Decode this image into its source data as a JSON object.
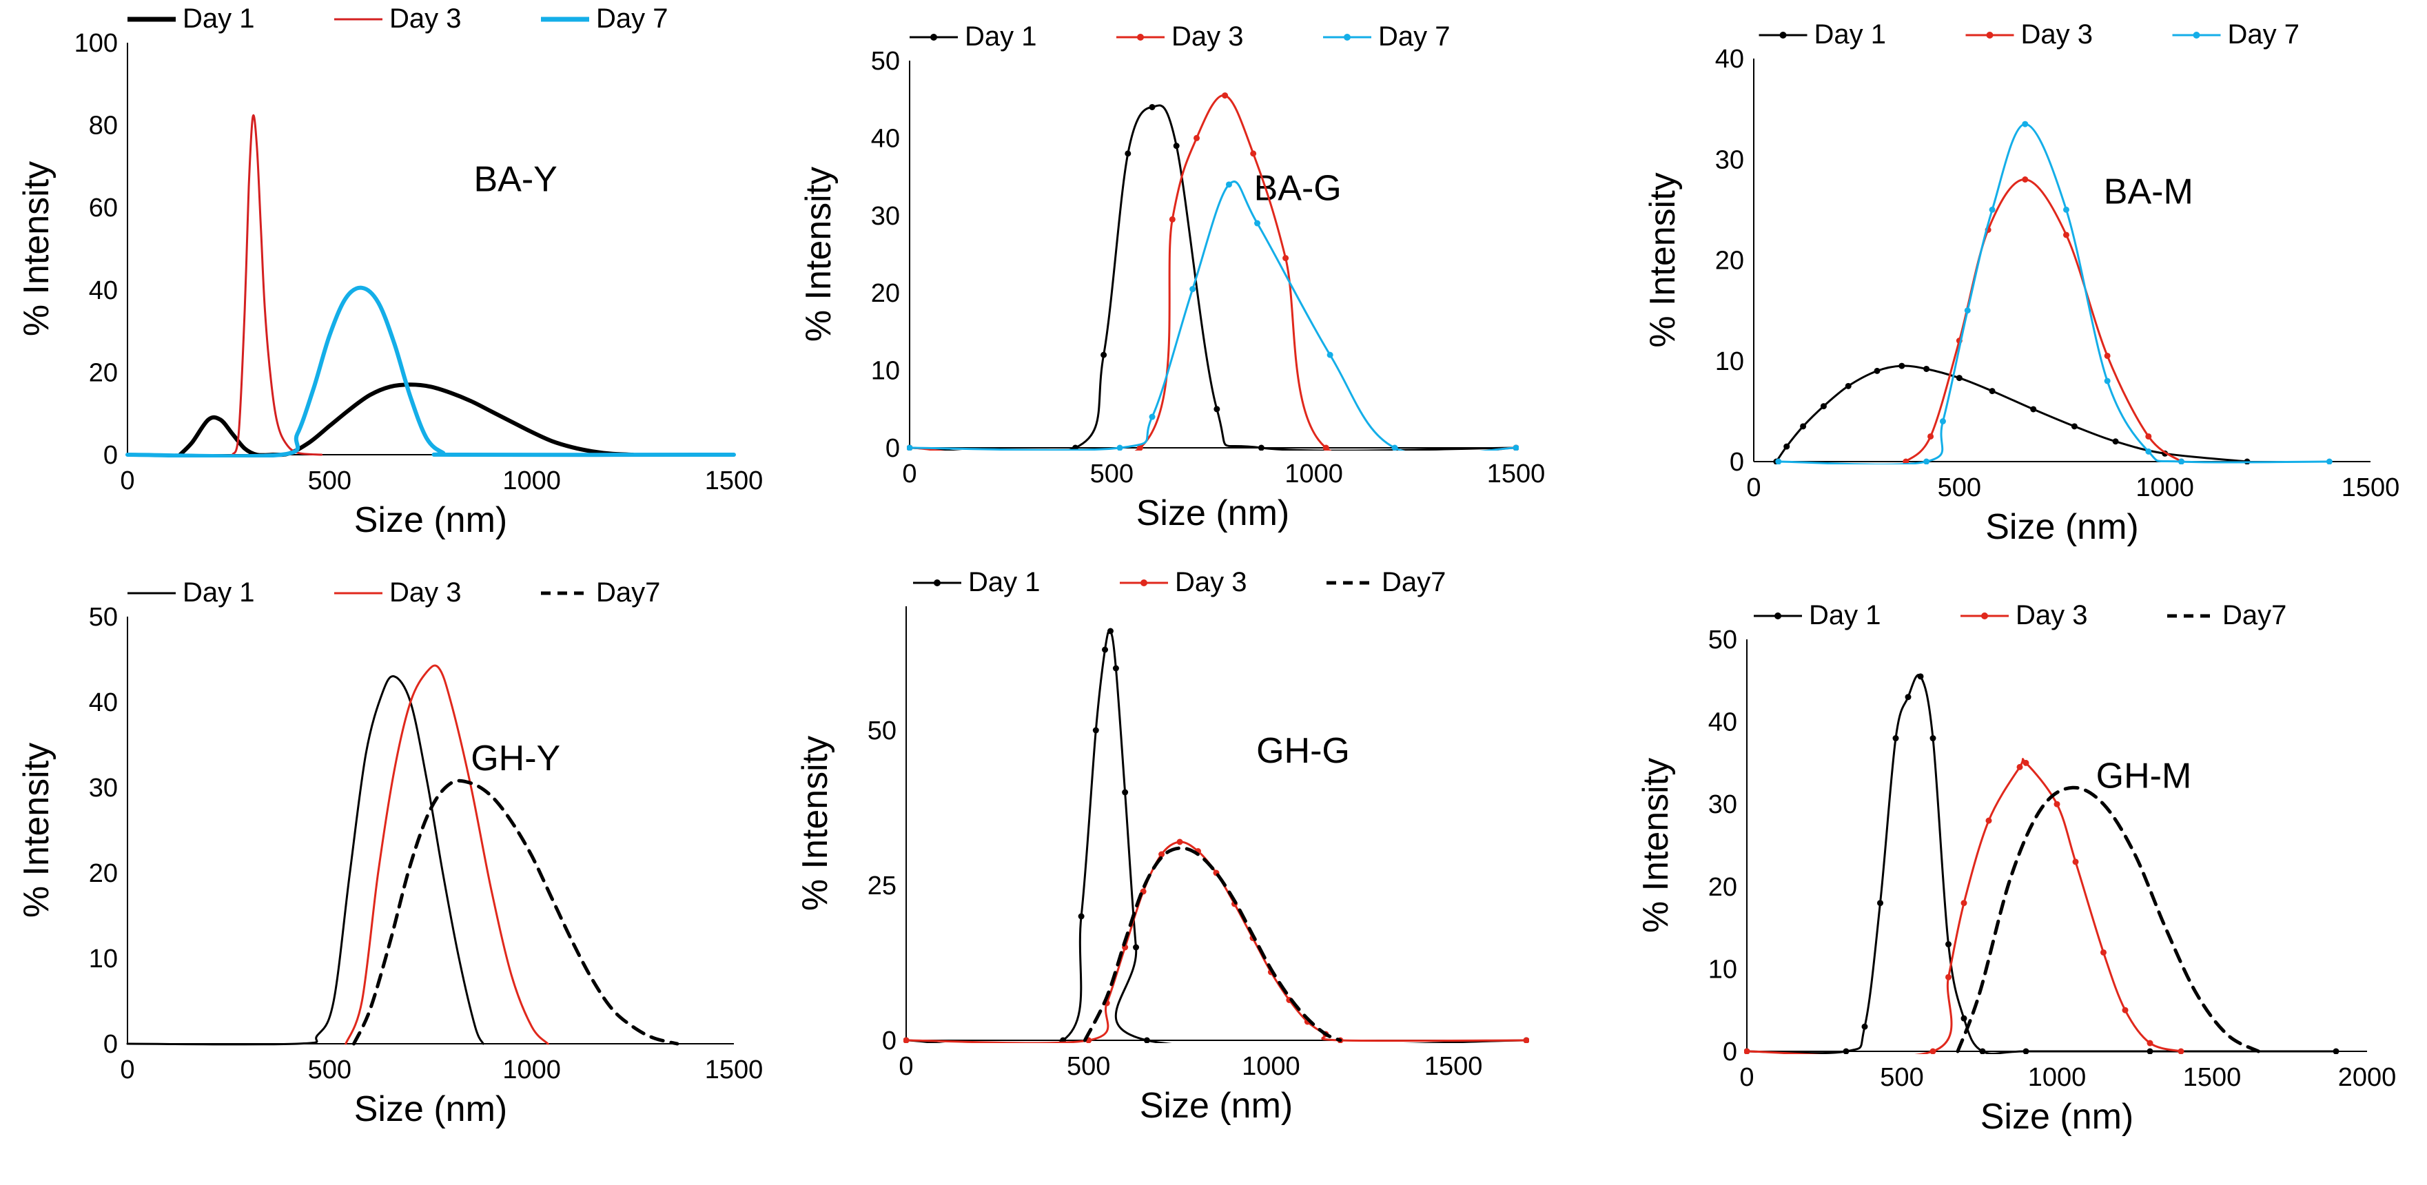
{
  "chart_data": [
    {
      "type": "line",
      "panel_label": "BA-Y",
      "xlabel": "Size (nm)",
      "ylabel": "% Intensity",
      "xlim": [
        0,
        1500
      ],
      "ylim": [
        0,
        100
      ],
      "xticks": [
        "0",
        "500",
        "1000",
        "1500"
      ],
      "yticks": [
        "0",
        "20",
        "40",
        "60",
        "80",
        "100"
      ],
      "legend_position": "top",
      "series": [
        {
          "name": "Day 1",
          "color": "#000000",
          "style": "solid-thick",
          "x": [
            130,
            160,
            200,
            230,
            260,
            290,
            320,
            360,
            400,
            450,
            500,
            550,
            600,
            650,
            700,
            750,
            800,
            850,
            900,
            950,
            1000,
            1050,
            1100,
            1150,
            1200,
            1250
          ],
          "y": [
            0,
            3,
            8.5,
            8.5,
            5,
            1.5,
            0,
            0,
            0.3,
            3,
            7,
            11,
            14.5,
            16.5,
            17,
            16.5,
            15,
            13,
            10.5,
            8,
            5.5,
            3.3,
            1.8,
            0.8,
            0.2,
            0
          ]
        },
        {
          "name": "Day 3",
          "color": "#d42020",
          "style": "solid",
          "x": [
            260,
            275,
            290,
            300,
            310,
            320,
            330,
            340,
            355,
            370,
            390,
            420,
            480
          ],
          "y": [
            0,
            5,
            35,
            65,
            82,
            75,
            55,
            35,
            18,
            8,
            3,
            0.5,
            0
          ]
        },
        {
          "name": "Day 7",
          "color": "#14aee8",
          "style": "solid-thick",
          "x": [
            0,
            380,
            420,
            460,
            500,
            540,
            580,
            620,
            660,
            700,
            740,
            780,
            820,
            1500
          ],
          "y": [
            0,
            0,
            5,
            16,
            29,
            38,
            40.5,
            37,
            27,
            14,
            4,
            0.5,
            0,
            0
          ]
        }
      ]
    },
    {
      "type": "line",
      "panel_label": "BA-G",
      "xlabel": "Size (nm)",
      "ylabel": "% Intensity",
      "xlim": [
        0,
        1500
      ],
      "ylim": [
        0,
        50
      ],
      "xticks": [
        "0",
        "500",
        "1000",
        "1500"
      ],
      "yticks": [
        "0",
        "10",
        "20",
        "30",
        "40",
        "50"
      ],
      "legend_position": "top",
      "series": [
        {
          "name": "Day 1",
          "color": "#000000",
          "style": "markers",
          "x": [
            0,
            410,
            480,
            540,
            600,
            660,
            760,
            870,
            1500
          ],
          "y": [
            0,
            0,
            12,
            38,
            44,
            39,
            5,
            0,
            0
          ]
        },
        {
          "name": "Day 3",
          "color": "#e0281c",
          "style": "markers",
          "x": [
            0,
            570,
            650,
            710,
            780,
            850,
            930,
            1030,
            1500
          ],
          "y": [
            0,
            0,
            29.5,
            40,
            45.5,
            38,
            24.5,
            0,
            0
          ]
        },
        {
          "name": "Day 7",
          "color": "#14aee8",
          "style": "markers",
          "x": [
            0,
            520,
            600,
            700,
            790,
            860,
            1040,
            1200,
            1500
          ],
          "y": [
            0,
            0,
            4,
            20.5,
            34,
            29,
            12,
            0,
            0
          ]
        }
      ]
    },
    {
      "type": "line",
      "panel_label": "BA-M",
      "xlabel": "Size (nm)",
      "ylabel": "% Intensity",
      "xlim": [
        0,
        1500
      ],
      "ylim": [
        0,
        40
      ],
      "xticks": [
        "0",
        "500",
        "1000",
        "1500"
      ],
      "yticks": [
        "0",
        "10",
        "20",
        "30",
        "40"
      ],
      "legend_position": "top",
      "series": [
        {
          "name": "Day 1",
          "color": "#000000",
          "style": "markers",
          "x": [
            55,
            80,
            120,
            170,
            230,
            300,
            360,
            420,
            500,
            580,
            680,
            780,
            880,
            1000,
            1200
          ],
          "y": [
            0,
            1.5,
            3.5,
            5.5,
            7.5,
            9,
            9.5,
            9.2,
            8.3,
            7,
            5.2,
            3.5,
            2,
            0.8,
            0
          ]
        },
        {
          "name": "Day 3",
          "color": "#e0281c",
          "style": "markers",
          "x": [
            370,
            430,
            500,
            570,
            660,
            760,
            860,
            960,
            1040
          ],
          "y": [
            0,
            2.5,
            12,
            23,
            28,
            22.5,
            10.5,
            2.5,
            0
          ]
        },
        {
          "name": "Day 7",
          "color": "#14aee8",
          "style": "markers",
          "x": [
            60,
            420,
            460,
            520,
            580,
            660,
            760,
            860,
            960,
            1040,
            1400
          ],
          "y": [
            0,
            0,
            4,
            15,
            25,
            33.5,
            25,
            8,
            1,
            0,
            0
          ]
        }
      ]
    },
    {
      "type": "line",
      "panel_label": "GH-Y",
      "xlabel": "Size (nm)",
      "ylabel": "% Intensity",
      "xlim": [
        0,
        1500
      ],
      "ylim": [
        0,
        50
      ],
      "xticks": [
        "0",
        "500",
        "1000",
        "1500"
      ],
      "yticks": [
        "0",
        "10",
        "20",
        "30",
        "40",
        "50"
      ],
      "legend_position": "top",
      "series": [
        {
          "name": "Day 1",
          "color": "#000000",
          "style": "solid",
          "x": [
            0,
            420,
            470,
            510,
            550,
            590,
            630,
            660,
            700,
            740,
            780,
            820,
            860,
            880
          ],
          "y": [
            0,
            0,
            1,
            5,
            20,
            34,
            41,
            43,
            40,
            31,
            20,
            10,
            2,
            0
          ]
        },
        {
          "name": "Day 3",
          "color": "#e0281c",
          "style": "solid",
          "x": [
            540,
            580,
            620,
            660,
            700,
            740,
            770,
            800,
            850,
            900,
            950,
            1000,
            1040
          ],
          "y": [
            0,
            5,
            20,
            32,
            40,
            43.5,
            44,
            40,
            30,
            18,
            8,
            2,
            0
          ]
        },
        {
          "name": "Day7",
          "color": "#000000",
          "style": "dashed",
          "x": [
            560,
            600,
            650,
            700,
            750,
            800,
            850,
            900,
            950,
            1000,
            1050,
            1100,
            1150,
            1200,
            1250,
            1300,
            1360
          ],
          "y": [
            0,
            4,
            12,
            21,
            27.5,
            30.5,
            30.5,
            29,
            26,
            22,
            17,
            12,
            7.5,
            4,
            2,
            0.7,
            0
          ]
        }
      ]
    },
    {
      "type": "line",
      "panel_label": "GH-G",
      "xlabel": "Size (nm)",
      "ylabel": "% Intensity",
      "xlim": [
        0,
        1700
      ],
      "ylim": [
        0,
        70
      ],
      "xticks": [
        "0",
        "500",
        "1000",
        "1500"
      ],
      "yticks": [
        "0",
        "25",
        "50"
      ],
      "legend_position": "top",
      "series": [
        {
          "name": "Day 1",
          "color": "#000000",
          "style": "markers",
          "x": [
            0,
            430,
            480,
            520,
            545,
            560,
            575,
            600,
            630,
            660,
            1700
          ],
          "y": [
            0,
            0,
            20,
            50,
            63,
            66,
            60,
            40,
            15,
            0,
            0
          ]
        },
        {
          "name": "Day 3",
          "color": "#e0281c",
          "style": "markers",
          "x": [
            0,
            500,
            550,
            600,
            650,
            700,
            750,
            800,
            850,
            900,
            950,
            1000,
            1050,
            1100,
            1150,
            1190,
            1700
          ],
          "y": [
            0,
            0,
            6,
            15,
            24,
            30,
            32,
            30.5,
            27,
            22,
            16.5,
            11,
            6.5,
            3,
            1,
            0,
            0
          ]
        },
        {
          "name": "Day7",
          "color": "#000000",
          "style": "dashed",
          "x": [
            490,
            550,
            600,
            650,
            700,
            750,
            800,
            850,
            900,
            950,
            1000,
            1050,
            1100,
            1150,
            1190
          ],
          "y": [
            0,
            7,
            16,
            24.5,
            29.5,
            31,
            30,
            27,
            22.5,
            17,
            11.5,
            7,
            3.5,
            1,
            0
          ]
        }
      ]
    },
    {
      "type": "line",
      "panel_label": "GH-M",
      "xlabel": "Size (nm)",
      "ylabel": "% Intensity",
      "xlim": [
        0,
        2000
      ],
      "ylim": [
        0,
        50
      ],
      "xticks": [
        "0",
        "500",
        "1000",
        "1500",
        "2000"
      ],
      "yticks": [
        "0",
        "10",
        "20",
        "30",
        "40",
        "50"
      ],
      "legend_position": "top",
      "series": [
        {
          "name": "Day 1",
          "color": "#000000",
          "style": "markers",
          "x": [
            0,
            320,
            380,
            430,
            480,
            520,
            560,
            600,
            650,
            700,
            760,
            900,
            1300,
            1900
          ],
          "y": [
            0,
            0,
            3,
            18,
            38,
            43,
            45.5,
            38,
            13,
            4,
            0,
            0,
            0,
            0
          ]
        },
        {
          "name": "Day 3",
          "color": "#e0281c",
          "style": "markers",
          "x": [
            0,
            600,
            650,
            700,
            780,
            880,
            900,
            1000,
            1060,
            1150,
            1220,
            1300,
            1400
          ],
          "y": [
            0,
            0,
            9,
            18,
            28,
            34.5,
            35,
            30,
            23,
            12,
            5,
            1,
            0
          ]
        },
        {
          "name": "Day7",
          "color": "#000000",
          "style": "dashed",
          "x": [
            680,
            750,
            850,
            950,
            1050,
            1150,
            1250,
            1350,
            1450,
            1550,
            1650
          ],
          "y": [
            0,
            7,
            21,
            29.5,
            32,
            30,
            24,
            15,
            7,
            2,
            0
          ]
        }
      ]
    }
  ]
}
